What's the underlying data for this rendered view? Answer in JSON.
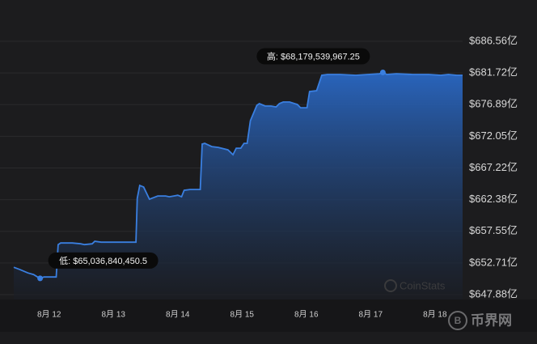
{
  "chart_data": {
    "type": "area",
    "x": [
      11.45,
      11.55,
      11.67,
      11.76,
      11.84,
      11.86,
      11.92,
      12.01,
      12.09,
      12.11,
      12.14,
      12.18,
      12.36,
      12.49,
      12.55,
      12.67,
      12.71,
      12.81,
      12.99,
      13.25,
      13.35,
      13.37,
      13.41,
      13.47,
      13.56,
      13.69,
      13.81,
      13.87,
      13.94,
      14.0,
      14.06,
      14.1,
      14.19,
      14.31,
      14.35,
      14.38,
      14.42,
      14.53,
      14.63,
      14.78,
      14.86,
      14.91,
      14.98,
      15.03,
      15.08,
      15.13,
      15.23,
      15.27,
      15.36,
      15.45,
      15.53,
      15.58,
      15.64,
      15.74,
      15.86,
      15.91,
      16.01,
      16.05,
      16.16,
      16.24,
      16.33,
      16.52,
      16.77,
      16.96,
      17.14,
      17.19,
      17.25,
      17.4,
      17.65,
      17.9,
      18.09,
      18.21,
      18.34,
      18.43
    ],
    "series": [
      {
        "color": "#3a7fe0",
        "values": [
          652.06,
          651.69,
          651.19,
          650.95,
          650.45,
          650.37,
          650.57,
          650.57,
          650.57,
          650.57,
          655.52,
          655.77,
          655.77,
          655.64,
          655.52,
          655.64,
          656.02,
          655.89,
          655.89,
          655.89,
          655.89,
          662.57,
          664.55,
          664.3,
          662.45,
          662.94,
          662.94,
          662.82,
          662.94,
          663.06,
          662.82,
          663.81,
          663.93,
          663.93,
          663.93,
          670.86,
          670.98,
          670.48,
          670.36,
          669.99,
          669.25,
          670.24,
          670.24,
          670.98,
          670.98,
          674.44,
          676.79,
          677.04,
          676.67,
          676.67,
          676.54,
          677.04,
          677.29,
          677.29,
          676.91,
          676.42,
          676.42,
          678.89,
          679.02,
          681.37,
          681.49,
          681.49,
          681.37,
          681.49,
          681.61,
          681.8,
          681.49,
          681.61,
          681.49,
          681.49,
          681.37,
          681.49,
          681.37,
          681.37
        ]
      }
    ],
    "xlim": [
      11.45,
      18.43
    ],
    "xticks": [
      {
        "value": 12,
        "label": "8月 12"
      },
      {
        "value": 13,
        "label": "8月 13"
      },
      {
        "value": 14,
        "label": "8月 14"
      },
      {
        "value": 15,
        "label": "8月 15"
      },
      {
        "value": 16,
        "label": "8月 16"
      },
      {
        "value": 17,
        "label": "8月 17"
      },
      {
        "value": 18,
        "label": "8月 18"
      }
    ],
    "ylim": [
      647.14,
      690.39
    ],
    "yticks": [
      {
        "value": 686.56,
        "label": "$686.56亿"
      },
      {
        "value": 681.72,
        "label": "$681.72亿"
      },
      {
        "value": 676.89,
        "label": "$676.89亿"
      },
      {
        "value": 672.05,
        "label": "$672.05亿"
      },
      {
        "value": 667.22,
        "label": "$667.22亿"
      },
      {
        "value": 662.38,
        "label": "$662.38亿"
      },
      {
        "value": 657.55,
        "label": "$657.55亿"
      },
      {
        "value": 652.71,
        "label": "$652.71亿"
      },
      {
        "value": 647.88,
        "label": "$647.88亿"
      }
    ],
    "grid": true,
    "annotations": {
      "high": "高: $68,179,539,967.25",
      "low": "低: $65,036,840,450.5"
    },
    "watermarks": [
      "CoinStats",
      "币界网"
    ]
  }
}
